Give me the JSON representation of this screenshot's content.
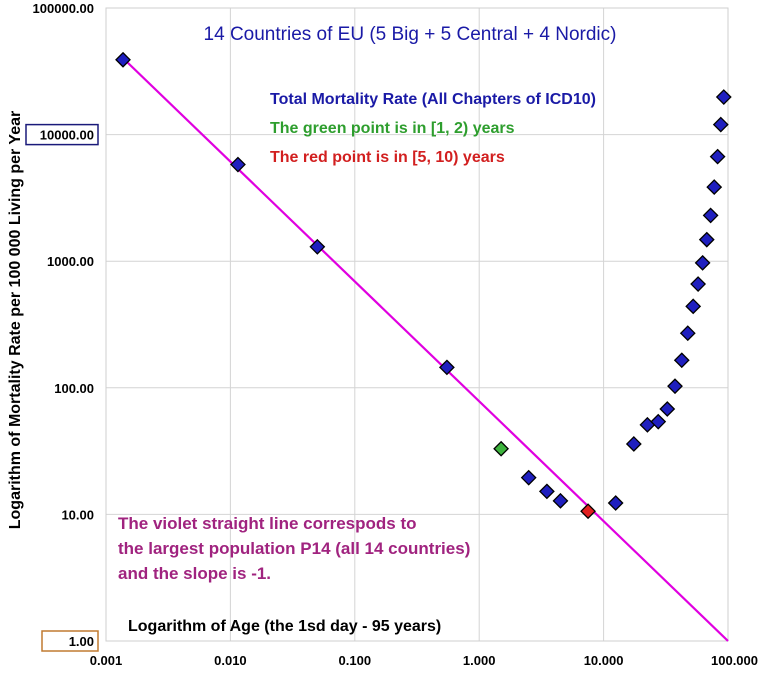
{
  "chart_data": {
    "type": "scatter",
    "title": "14 Countries of EU (5 Big + 5 Central + 4 Nordic)",
    "xlabel": "Logarithm of Age (the 1sd day - 95 years)",
    "ylabel": "Logarithm of Mortality Rate per 100 000 Living per Year",
    "x_scale": "log",
    "y_scale": "log",
    "xlim": [
      0.001,
      100
    ],
    "ylim": [
      1,
      100000
    ],
    "grid": true,
    "x_ticks": [
      "0.001",
      "0.010",
      "0.100",
      "1.000",
      "10.000",
      "100.000"
    ],
    "y_ticks": [
      "1.00",
      "10.00",
      "100.00",
      "1000.00",
      "10000.00",
      "100000.00"
    ],
    "annotations": {
      "series_label": "Total Mortality Rate (All Chapters of ICD10)",
      "green_note": "The green point is in [1, 2) years",
      "red_note": "The red point is in [5, 10) years",
      "line_note": [
        "The violet straight line  correspods to",
        "the largest population P14 (all 14 countries)",
        "and the slope is -1."
      ]
    },
    "series": [
      {
        "name": "Total Mortality Rate (All Chapters of ICD10)",
        "color": "#1f1fbf",
        "points": [
          [
            0.00137,
            39000
          ],
          [
            0.0115,
            5800
          ],
          [
            0.05,
            1300
          ],
          [
            0.55,
            145
          ],
          [
            2.5,
            19.5
          ],
          [
            3.5,
            15.2
          ],
          [
            4.5,
            12.8
          ],
          [
            12.5,
            12.3
          ],
          [
            17.5,
            36
          ],
          [
            22.5,
            51
          ],
          [
            27.5,
            54
          ],
          [
            32.5,
            68
          ],
          [
            37.5,
            103
          ],
          [
            42.5,
            165
          ],
          [
            47.5,
            270
          ],
          [
            52.5,
            440
          ],
          [
            57.5,
            660
          ],
          [
            62.5,
            970
          ],
          [
            67.5,
            1480
          ],
          [
            72.5,
            2300
          ],
          [
            77.5,
            3850
          ],
          [
            82.5,
            6700
          ],
          [
            87.5,
            12000
          ],
          [
            92.5,
            19800
          ]
        ]
      },
      {
        "name": "[1, 2) years",
        "color": "#3db33d",
        "points": [
          [
            1.5,
            33
          ]
        ]
      },
      {
        "name": "[5, 10) years",
        "color": "#e02020",
        "points": [
          [
            7.5,
            10.6
          ]
        ]
      }
    ],
    "fit_line": {
      "color": "#e000e0",
      "slope": -1,
      "intercept_at_x1": 55,
      "x_range": [
        0.00137,
        100
      ]
    }
  }
}
